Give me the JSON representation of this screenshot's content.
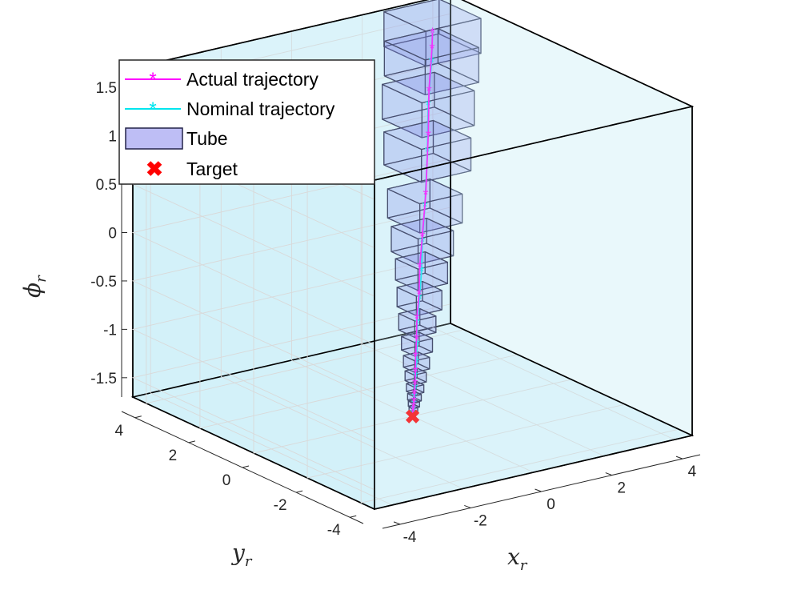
{
  "chart_data": {
    "type": "line3d",
    "title": "",
    "xlabel": "x",
    "xlabel_sub": "r",
    "ylabel": "y",
    "ylabel_sub": "r",
    "zlabel": "ϕ",
    "zlabel_sub": "r",
    "xlim": [
      -4.5,
      4.5
    ],
    "ylim": [
      -4.5,
      4.5
    ],
    "zlim": [
      -1.7,
      1.7
    ],
    "x_ticks": [
      "-4",
      "-2",
      "0",
      "2",
      "4"
    ],
    "y_ticks": [
      "-4",
      "-2",
      "0",
      "2",
      "4"
    ],
    "z_ticks": [
      "-1.5",
      "-1",
      "-0.5",
      "0",
      "0.5",
      "1",
      "1.5"
    ],
    "grid": true,
    "legend_position": "top-left",
    "legend": [
      {
        "label": "Actual trajectory",
        "marker": "asterisk-line"
      },
      {
        "label": "Nominal trajectory",
        "marker": "asterisk-line"
      },
      {
        "label": "Tube",
        "marker": "patch"
      },
      {
        "label": "Target",
        "marker": "x"
      }
    ],
    "colors": {
      "actual": "#ff00ff",
      "nominal": "#00e5ee",
      "tube_fill": "#6f6fe8",
      "tube_edge": "#24244a",
      "target": "#ff0000",
      "constraint_fill": "#c9ecf7",
      "constraint_edge": "#000000"
    },
    "constraint_box": {
      "x": [
        -4.5,
        4.5
      ],
      "y": [
        -4.5,
        4.5
      ],
      "z": [
        -1.7,
        1.7
      ]
    },
    "series": [
      {
        "name": "Actual trajectory",
        "points": [
          [
            3.0,
            3.2,
            1.6
          ],
          [
            2.95,
            3.15,
            1.45
          ],
          [
            2.75,
            3.0,
            1.05
          ],
          [
            2.5,
            2.7,
            0.65
          ],
          [
            2.2,
            2.4,
            0.1
          ],
          [
            1.8,
            2.0,
            -0.25
          ],
          [
            1.5,
            1.7,
            -0.5
          ],
          [
            1.25,
            1.4,
            -0.72
          ],
          [
            1.0,
            1.15,
            -0.92
          ],
          [
            0.8,
            0.9,
            -1.08
          ],
          [
            0.62,
            0.7,
            -1.22
          ],
          [
            0.48,
            0.52,
            -1.34
          ],
          [
            0.36,
            0.38,
            -1.44
          ],
          [
            0.26,
            0.27,
            -1.52
          ],
          [
            0.18,
            0.18,
            -1.58
          ],
          [
            0.11,
            0.11,
            -1.62
          ],
          [
            0.06,
            0.06,
            -1.65
          ],
          [
            0.0,
            0.0,
            -1.7
          ]
        ]
      },
      {
        "name": "Nominal trajectory",
        "points": [
          [
            3.0,
            3.2,
            1.6
          ],
          [
            2.9,
            3.1,
            1.32
          ],
          [
            2.65,
            2.9,
            0.92
          ],
          [
            2.4,
            2.6,
            0.5
          ],
          [
            2.1,
            2.3,
            0.0
          ],
          [
            1.8,
            2.0,
            -0.3
          ],
          [
            1.55,
            1.7,
            -0.55
          ],
          [
            1.3,
            1.45,
            -0.78
          ],
          [
            1.05,
            1.2,
            -0.98
          ],
          [
            0.85,
            0.95,
            -1.15
          ],
          [
            0.66,
            0.72,
            -1.29
          ],
          [
            0.5,
            0.54,
            -1.4
          ],
          [
            0.37,
            0.39,
            -1.49
          ],
          [
            0.26,
            0.27,
            -1.56
          ],
          [
            0.17,
            0.17,
            -1.61
          ],
          [
            0.1,
            0.1,
            -1.65
          ],
          [
            0.05,
            0.05,
            -1.68
          ],
          [
            0.0,
            0.0,
            -1.7
          ]
        ]
      }
    ],
    "tube_half_widths": [
      [
        0.78,
        0.78,
        0.18
      ],
      [
        0.76,
        0.76,
        0.18
      ],
      [
        0.74,
        0.74,
        0.18
      ],
      [
        0.7,
        0.7,
        0.17
      ],
      [
        0.6,
        0.6,
        0.15
      ],
      [
        0.5,
        0.5,
        0.13
      ],
      [
        0.42,
        0.42,
        0.11
      ],
      [
        0.36,
        0.36,
        0.1
      ],
      [
        0.3,
        0.3,
        0.085
      ],
      [
        0.25,
        0.25,
        0.07
      ],
      [
        0.21,
        0.21,
        0.06
      ],
      [
        0.17,
        0.17,
        0.05
      ],
      [
        0.14,
        0.14,
        0.04
      ],
      [
        0.11,
        0.11,
        0.033
      ],
      [
        0.09,
        0.09,
        0.026
      ],
      [
        0.07,
        0.07,
        0.02
      ],
      [
        0.05,
        0.05,
        0.015
      ]
    ],
    "target": [
      0.0,
      0.0,
      -1.7
    ]
  }
}
